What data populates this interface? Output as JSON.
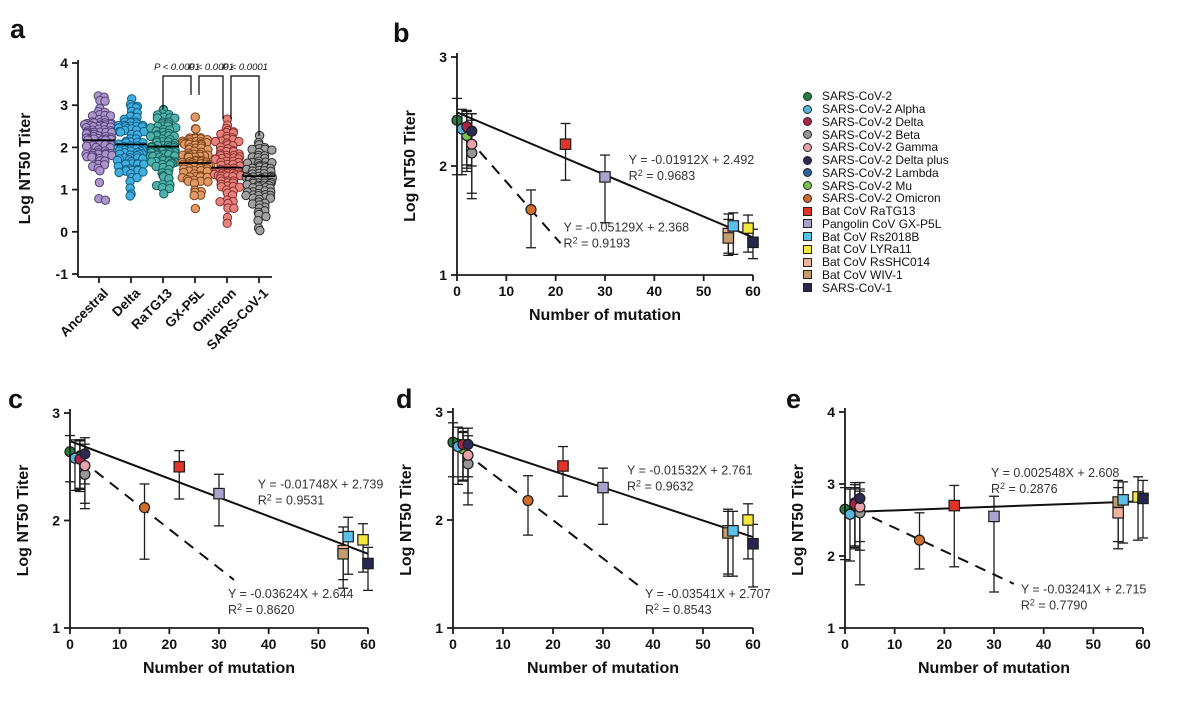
{
  "chart_data": [
    {
      "type": "scatter",
      "subtype": "beeswarm",
      "panel_label": "a",
      "ylabel": "Log NT50 Titer",
      "ylim": [
        -1,
        4
      ],
      "yticks": [
        -1,
        0,
        1,
        2,
        3,
        4
      ],
      "categories": [
        {
          "name": "Ancestral",
          "fill": "#ac95c8",
          "stroke": "#51407a",
          "median": 2.17,
          "min": 0.75,
          "max": 3.22,
          "n": 90
        },
        {
          "name": "Delta",
          "fill": "#42aede",
          "stroke": "#115e86",
          "median": 2.07,
          "min": 0.85,
          "max": 3.15,
          "n": 90
        },
        {
          "name": "RaTG13",
          "fill": "#4fb0aa",
          "stroke": "#175f5b",
          "median": 2.02,
          "min": 0.9,
          "max": 2.9,
          "n": 90
        },
        {
          "name": "GX-P5L",
          "fill": "#e09a68",
          "stroke": "#7c4418",
          "median": 1.63,
          "min": 0.55,
          "max": 2.72,
          "n": 90
        },
        {
          "name": "Omicron",
          "fill": "#e4837e",
          "stroke": "#8c2f2c",
          "median": 1.52,
          "min": 0.2,
          "max": 2.67,
          "n": 90
        },
        {
          "name": "SARS-CoV-1",
          "fill": "#a2a2a2",
          "stroke": "#2e2e2e",
          "median": 1.32,
          "min": 0.03,
          "max": 2.28,
          "n": 90
        }
      ],
      "p_annotations": [
        {
          "between": [
            "RaTG13",
            "GX-P5L"
          ],
          "text": "P < 0.0001"
        },
        {
          "between": [
            "GX-P5L",
            "Omicron"
          ],
          "text": "P < 0.0001"
        },
        {
          "between": [
            "Omicron",
            "SARS-CoV-1"
          ],
          "text": "P < 0.0001"
        }
      ]
    },
    {
      "type": "scatter",
      "panel_label": "b",
      "xlabel": "Number of mutation",
      "ylabel": "Log NT50 Titer",
      "xlim": [
        0,
        60
      ],
      "xticks": [
        0,
        10,
        20,
        30,
        40,
        50,
        60
      ],
      "ylim": [
        1,
        3
      ],
      "yticks": [
        1,
        2,
        3
      ],
      "points": [
        {
          "virus": "SARS-CoV-2 Lambda",
          "x": 2,
          "y": 2.3,
          "err_up": 0.2,
          "err_dn": 0.35
        },
        {
          "virus": "SARS-CoV-2 Mu",
          "x": 2,
          "y": 2.28,
          "err_up": 0.2,
          "err_dn": 0.3
        },
        {
          "virus": "SARS-CoV-2",
          "x": 0,
          "y": 2.42,
          "err_up": 0.2,
          "err_dn": 0.5
        },
        {
          "virus": "SARS-CoV-2 Alpha",
          "x": 1,
          "y": 2.34,
          "err_up": 0.18,
          "err_dn": 0.42
        },
        {
          "virus": "SARS-CoV-2 Delta",
          "x": 2,
          "y": 2.36,
          "err_up": 0.15,
          "err_dn": 0.35
        },
        {
          "virus": "SARS-CoV-2 Beta",
          "x": 3,
          "y": 2.12,
          "err_up": 0.3,
          "err_dn": 0.42
        },
        {
          "virus": "SARS-CoV-2 Gamma",
          "x": 3,
          "y": 2.2,
          "err_up": 0.28,
          "err_dn": 0.45
        },
        {
          "virus": "SARS-CoV-2 Delta plus",
          "x": 3,
          "y": 2.32,
          "err_up": 0.16,
          "err_dn": 0.32
        },
        {
          "virus": "SARS-CoV-2 Omicron",
          "x": 15,
          "y": 1.6,
          "err_up": 0.18,
          "err_dn": 0.35
        },
        {
          "virus": "Bat CoV RaTG13",
          "x": 22,
          "y": 2.2,
          "err_up": 0.19,
          "err_dn": 0.33
        },
        {
          "virus": "Pangolin CoV GX-P5L",
          "x": 30,
          "y": 1.9,
          "err_up": 0.2,
          "err_dn": 0.42
        },
        {
          "virus": "Bat CoV RsSHC014",
          "x": 55,
          "y": 1.38,
          "err_up": 0.18,
          "err_dn": 0.2
        },
        {
          "virus": "Bat CoV WIV-1",
          "x": 55,
          "y": 1.34,
          "err_up": 0.17,
          "err_dn": 0.14
        },
        {
          "virus": "Bat CoV Rs2018B",
          "x": 56,
          "y": 1.45,
          "err_up": 0.12,
          "err_dn": 0.26
        },
        {
          "virus": "Bat CoV LYRa11",
          "x": 59,
          "y": 1.43,
          "err_up": 0.12,
          "err_dn": 0.22
        },
        {
          "virus": "SARS-CoV-1",
          "x": 60,
          "y": 1.3,
          "err_up": 0.12,
          "err_dn": 0.15
        }
      ],
      "fits": [
        {
          "style": "solid",
          "equation": "Y = -0.01912X + 2.492",
          "r2": "0.9683",
          "slope": -0.01912,
          "intercept": 2.492,
          "x_start": 0,
          "x_end": 60,
          "label_pos": [
            0.58,
            0.49
          ]
        },
        {
          "style": "dashed",
          "equation": "Y = -0.05129X + 2.368",
          "r2": "0.9193",
          "slope": -0.05129,
          "intercept": 2.368,
          "x_start": 2,
          "x_end": 21,
          "label_pos": [
            0.36,
            0.8
          ]
        }
      ]
    },
    {
      "type": "scatter",
      "panel_label": "c",
      "xlabel": "Number of mutation",
      "ylabel": "Log NT50 Titer",
      "xlim": [
        0,
        60
      ],
      "xticks": [
        0,
        10,
        20,
        30,
        40,
        50,
        60
      ],
      "ylim": [
        1,
        3
      ],
      "yticks": [
        1,
        2,
        3
      ],
      "points": [
        {
          "virus": "SARS-CoV-2 Lambda",
          "x": 2,
          "y": 2.6,
          "err_up": 0.15,
          "err_dn": 0.3
        },
        {
          "virus": "SARS-CoV-2 Mu",
          "x": 2,
          "y": 2.59,
          "err_up": 0.15,
          "err_dn": 0.3
        },
        {
          "virus": "SARS-CoV-2",
          "x": 0,
          "y": 2.64,
          "err_up": 0.15,
          "err_dn": 0.28
        },
        {
          "virus": "SARS-CoV-2 Alpha",
          "x": 1,
          "y": 2.58,
          "err_up": 0.17,
          "err_dn": 0.3
        },
        {
          "virus": "SARS-CoV-2 Delta",
          "x": 2,
          "y": 2.57,
          "err_up": 0.18,
          "err_dn": 0.3
        },
        {
          "virus": "SARS-CoV-2 Beta",
          "x": 3,
          "y": 2.43,
          "err_up": 0.2,
          "err_dn": 0.32
        },
        {
          "virus": "SARS-CoV-2 Gamma",
          "x": 3,
          "y": 2.51,
          "err_up": 0.2,
          "err_dn": 0.35
        },
        {
          "virus": "SARS-CoV-2 Delta plus",
          "x": 3,
          "y": 2.62,
          "err_up": 0.15,
          "err_dn": 0.28
        },
        {
          "virus": "SARS-CoV-2 Omicron",
          "x": 15,
          "y": 2.12,
          "err_up": 0.22,
          "err_dn": 0.48
        },
        {
          "virus": "Bat CoV RaTG13",
          "x": 22,
          "y": 2.5,
          "err_up": 0.15,
          "err_dn": 0.3
        },
        {
          "virus": "Pangolin CoV GX-P5L",
          "x": 30,
          "y": 2.25,
          "err_up": 0.18,
          "err_dn": 0.3
        },
        {
          "virus": "Bat CoV RsSHC014",
          "x": 55,
          "y": 1.72,
          "err_up": 0.22,
          "err_dn": 0.35
        },
        {
          "virus": "Bat CoV WIV-1",
          "x": 55,
          "y": 1.69,
          "err_up": 0.2,
          "err_dn": 0.24
        },
        {
          "virus": "Bat CoV Rs2018B",
          "x": 56,
          "y": 1.85,
          "err_up": 0.18,
          "err_dn": 0.35
        },
        {
          "virus": "Bat CoV LYRa11",
          "x": 59,
          "y": 1.82,
          "err_up": 0.15,
          "err_dn": 0.3
        },
        {
          "virus": "SARS-CoV-1",
          "x": 60,
          "y": 1.6,
          "err_up": 0.15,
          "err_dn": 0.25
        }
      ],
      "fits": [
        {
          "style": "solid",
          "equation": "Y = -0.01748X + 2.739",
          "r2": "0.9531",
          "slope": -0.01748,
          "intercept": 2.739,
          "x_start": 0,
          "x_end": 60,
          "label_pos": [
            0.63,
            0.35
          ]
        },
        {
          "style": "dashed",
          "equation": "Y = -0.03624X + 2.644",
          "r2": "0.8620",
          "slope": -0.03624,
          "intercept": 2.644,
          "x_start": 2,
          "x_end": 33,
          "label_pos": [
            0.53,
            0.86
          ]
        }
      ]
    },
    {
      "type": "scatter",
      "panel_label": "d",
      "xlabel": "Number of mutation",
      "ylabel": "Log NT50 Titer",
      "xlim": [
        0,
        60
      ],
      "xticks": [
        0,
        10,
        20,
        30,
        40,
        50,
        60
      ],
      "ylim": [
        1,
        3
      ],
      "yticks": [
        1,
        2,
        3
      ],
      "points": [
        {
          "virus": "SARS-CoV-2 Lambda",
          "x": 2,
          "y": 2.67,
          "err_up": 0.15,
          "err_dn": 0.3
        },
        {
          "virus": "SARS-CoV-2 Mu",
          "x": 2,
          "y": 2.66,
          "err_up": 0.15,
          "err_dn": 0.3
        },
        {
          "virus": "SARS-CoV-2",
          "x": 0,
          "y": 2.72,
          "err_up": 0.18,
          "err_dn": 0.32
        },
        {
          "virus": "SARS-CoV-2 Alpha",
          "x": 1,
          "y": 2.68,
          "err_up": 0.18,
          "err_dn": 0.35
        },
        {
          "virus": "SARS-CoV-2 Delta",
          "x": 2,
          "y": 2.7,
          "err_up": 0.15,
          "err_dn": 0.3
        },
        {
          "virus": "SARS-CoV-2 Beta",
          "x": 3,
          "y": 2.52,
          "err_up": 0.2,
          "err_dn": 0.38
        },
        {
          "virus": "SARS-CoV-2 Gamma",
          "x": 3,
          "y": 2.6,
          "err_up": 0.18,
          "err_dn": 0.35
        },
        {
          "virus": "SARS-CoV-2 Delta plus",
          "x": 3,
          "y": 2.7,
          "err_up": 0.15,
          "err_dn": 0.3
        },
        {
          "virus": "SARS-CoV-2 Omicron",
          "x": 15,
          "y": 2.18,
          "err_up": 0.23,
          "err_dn": 0.32
        },
        {
          "virus": "Bat CoV RaTG13",
          "x": 22,
          "y": 2.5,
          "err_up": 0.18,
          "err_dn": 0.28
        },
        {
          "virus": "Pangolin CoV GX-P5L",
          "x": 30,
          "y": 2.3,
          "err_up": 0.18,
          "err_dn": 0.34
        },
        {
          "virus": "Bat CoV RsSHC014",
          "x": 55,
          "y": 1.9,
          "err_up": 0.2,
          "err_dn": 0.42
        },
        {
          "virus": "Bat CoV WIV-1",
          "x": 55,
          "y": 1.88,
          "err_up": 0.2,
          "err_dn": 0.38
        },
        {
          "virus": "Bat CoV Rs2018B",
          "x": 56,
          "y": 1.9,
          "err_up": 0.18,
          "err_dn": 0.42
        },
        {
          "virus": "Bat CoV LYRa11",
          "x": 59,
          "y": 2.0,
          "err_up": 0.15,
          "err_dn": 0.36
        },
        {
          "virus": "SARS-CoV-1",
          "x": 60,
          "y": 1.78,
          "err_up": 0.18,
          "err_dn": 0.4
        }
      ],
      "fits": [
        {
          "style": "solid",
          "equation": "Y = -0.01532X + 2.761",
          "r2": "0.9632",
          "slope": -0.01532,
          "intercept": 2.761,
          "x_start": 0,
          "x_end": 60,
          "label_pos": [
            0.58,
            0.29
          ]
        },
        {
          "style": "dashed",
          "equation": "Y = -0.03541X + 2.707",
          "r2": "0.8543",
          "slope": -0.03541,
          "intercept": 2.707,
          "x_start": 2,
          "x_end": 38,
          "label_pos": [
            0.64,
            0.86
          ]
        }
      ]
    },
    {
      "type": "scatter",
      "panel_label": "e",
      "xlabel": "Number of mutation",
      "ylabel": "Log NT50 Titer",
      "xlim": [
        0,
        60
      ],
      "xticks": [
        0,
        10,
        20,
        30,
        40,
        50,
        60
      ],
      "ylim": [
        1,
        4
      ],
      "yticks": [
        1,
        2,
        3,
        4
      ],
      "points": [
        {
          "virus": "SARS-CoV-2 Lambda",
          "x": 2,
          "y": 2.74,
          "err_up": 0.25,
          "err_dn": 0.6
        },
        {
          "virus": "SARS-CoV-2 Mu",
          "x": 2,
          "y": 2.7,
          "err_up": 0.25,
          "err_dn": 0.6
        },
        {
          "virus": "SARS-CoV-2",
          "x": 0,
          "y": 2.65,
          "err_up": 0.3,
          "err_dn": 0.7
        },
        {
          "virus": "SARS-CoV-2 Alpha",
          "x": 1,
          "y": 2.58,
          "err_up": 0.35,
          "err_dn": 0.65
        },
        {
          "virus": "SARS-CoV-2 Delta",
          "x": 2,
          "y": 2.72,
          "err_up": 0.3,
          "err_dn": 0.6
        },
        {
          "virus": "SARS-CoV-2 Beta",
          "x": 3,
          "y": 2.6,
          "err_up": 0.3,
          "err_dn": 1.0
        },
        {
          "virus": "SARS-CoV-2 Gamma",
          "x": 3,
          "y": 2.68,
          "err_up": 0.25,
          "err_dn": 0.6
        },
        {
          "virus": "SARS-CoV-2 Delta plus",
          "x": 3,
          "y": 2.8,
          "err_up": 0.22,
          "err_dn": 0.6
        },
        {
          "virus": "SARS-CoV-2 Omicron",
          "x": 15,
          "y": 2.22,
          "err_up": 0.38,
          "err_dn": 0.4
        },
        {
          "virus": "Bat CoV RaTG13",
          "x": 22,
          "y": 2.7,
          "err_up": 0.28,
          "err_dn": 0.85
        },
        {
          "virus": "Pangolin CoV GX-P5L",
          "x": 30,
          "y": 2.55,
          "err_up": 0.28,
          "err_dn": 1.05
        },
        {
          "virus": "Bat CoV RsSHC014",
          "x": 55,
          "y": 2.6,
          "err_up": 0.35,
          "err_dn": 0.5
        },
        {
          "virus": "Bat CoV WIV-1",
          "x": 55,
          "y": 2.75,
          "err_up": 0.3,
          "err_dn": 0.55
        },
        {
          "virus": "Bat CoV Rs2018B",
          "x": 56,
          "y": 2.78,
          "err_up": 0.25,
          "err_dn": 0.6
        },
        {
          "virus": "Bat CoV LYRa11",
          "x": 59,
          "y": 2.82,
          "err_up": 0.28,
          "err_dn": 0.6
        },
        {
          "virus": "SARS-CoV-1",
          "x": 60,
          "y": 2.8,
          "err_up": 0.25,
          "err_dn": 0.55
        }
      ],
      "fits": [
        {
          "style": "solid",
          "equation": "Y = 0.002548X + 2.608",
          "r2": "0.2876",
          "slope": 0.002548,
          "intercept": 2.608,
          "x_start": 0,
          "x_end": 60,
          "label_pos": [
            0.49,
            0.3
          ]
        },
        {
          "style": "dashed",
          "equation": "Y = -0.03241X + 2.715",
          "r2": "0.7790",
          "slope": -0.03241,
          "intercept": 2.715,
          "x_start": 2,
          "x_end": 34,
          "label_pos": [
            0.59,
            0.84
          ]
        }
      ]
    }
  ],
  "legend": {
    "items": [
      {
        "label": "SARS-CoV-2",
        "marker": "circle",
        "color": "#21803f"
      },
      {
        "label": "SARS-CoV-2 Alpha",
        "marker": "circle",
        "color": "#58b4dc"
      },
      {
        "label": "SARS-CoV-2 Delta",
        "marker": "circle",
        "color": "#b0244c"
      },
      {
        "label": "SARS-CoV-2 Beta",
        "marker": "circle",
        "color": "#979797"
      },
      {
        "label": "SARS-CoV-2 Gamma",
        "marker": "circle",
        "color": "#e8a2ac"
      },
      {
        "label": "SARS-CoV-2 Delta plus",
        "marker": "circle",
        "color": "#2a2a52"
      },
      {
        "label": "SARS-CoV-2 Lambda",
        "marker": "circle",
        "color": "#33619c"
      },
      {
        "label": "SARS-CoV-2 Mu",
        "marker": "circle",
        "color": "#7cc24e"
      },
      {
        "label": "SARS-CoV-2 Omicron",
        "marker": "circle",
        "color": "#d06c2c"
      },
      {
        "label": "Bat CoV RaTG13",
        "marker": "square",
        "color": "#df3428"
      },
      {
        "label": "Pangolin CoV GX-P5L",
        "marker": "square",
        "color": "#aaa2cc"
      },
      {
        "label": "Bat CoV Rs2018B",
        "marker": "square",
        "color": "#5ac2e8"
      },
      {
        "label": "Bat CoV LYRa11",
        "marker": "square",
        "color": "#f3e63c"
      },
      {
        "label": "Bat CoV RsSHC014",
        "marker": "square",
        "color": "#f0b29c"
      },
      {
        "label": "Bat CoV WIV-1",
        "marker": "square",
        "color": "#c39c6e"
      },
      {
        "label": "SARS-CoV-1",
        "marker": "square",
        "color": "#27264e"
      }
    ]
  }
}
